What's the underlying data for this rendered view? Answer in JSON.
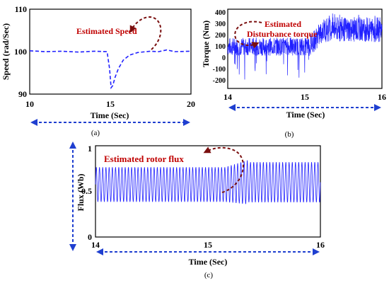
{
  "colors": {
    "signal": "#2020ff",
    "annotation": "#c00000",
    "axis_arrow": "#1f3fd0",
    "curved_arrow": "#7a0f0f"
  },
  "chart_data": [
    {
      "type": "line",
      "panel_label": "(a)",
      "xlabel": "Time (Sec)",
      "ylabel": "Speed (rad/Sec)",
      "xlim": [
        10,
        20
      ],
      "ylim": [
        90,
        110
      ],
      "xticks": [
        10,
        15,
        20
      ],
      "yticks": [
        90,
        100,
        110
      ],
      "grid": false,
      "annotation": "Estimated Speed",
      "series": [
        {
          "line_style": "dashed",
          "x": [
            10,
            11,
            12,
            13,
            14,
            14.8,
            14.95,
            15.05,
            15.15,
            15.3,
            15.5,
            15.8,
            16.2,
            16.7,
            17.5,
            18,
            18.5,
            19,
            20
          ],
          "y": [
            100.2,
            100,
            100.1,
            99.9,
            100.1,
            100,
            96,
            91.5,
            92,
            94,
            96,
            98,
            99.2,
            99.8,
            100.1,
            100,
            100.4,
            100,
            100.1
          ]
        }
      ]
    },
    {
      "type": "line",
      "panel_label": "(b)",
      "xlabel": "Time (Sec)",
      "ylabel": "Torque (Nm)",
      "xlim": [
        14,
        16
      ],
      "ylim": [
        -250,
        450
      ],
      "xticks": [
        14,
        15,
        16
      ],
      "yticks": [
        -200,
        -100,
        0,
        100,
        200,
        300,
        400
      ],
      "grid": false,
      "annotation": "Estimated Disturbance torque",
      "series": [
        {
          "line_style": "solid",
          "segments": [
            {
              "x_start": 14,
              "x_end": 15.05,
              "center": 120,
              "amplitude": 80,
              "spike_min": -180
            },
            {
              "x_start": 15.05,
              "x_end": 15.25,
              "center_start": 120,
              "center_end": 270,
              "amplitude": 100
            },
            {
              "x_start": 15.25,
              "x_end": 16,
              "center": 270,
              "amplitude": 110,
              "spike_max": 420
            }
          ]
        }
      ]
    },
    {
      "type": "line",
      "panel_label": "(c)",
      "xlabel": "Time (Sec)",
      "ylabel": "Flux (Wb)",
      "xlim": [
        14,
        16
      ],
      "ylim": [
        0,
        1
      ],
      "xticks": [
        14,
        15,
        16
      ],
      "yticks": [
        0,
        0.5,
        1
      ],
      "grid": false,
      "annotation": "Estimated rotor flux",
      "series": [
        {
          "line_style": "solid",
          "oscillation_cycles": 70,
          "segments": [
            {
              "x_start": 14,
              "x_end": 15.15,
              "center": 0.575,
              "amplitude": 0.19
            },
            {
              "x_start": 15.15,
              "x_end": 15.35,
              "center_start": 0.575,
              "center_end": 0.6,
              "amplitude_start": 0.19,
              "amplitude_end": 0.24
            },
            {
              "x_start": 15.35,
              "x_end": 16,
              "center": 0.6,
              "amplitude": 0.22
            }
          ]
        }
      ]
    }
  ]
}
